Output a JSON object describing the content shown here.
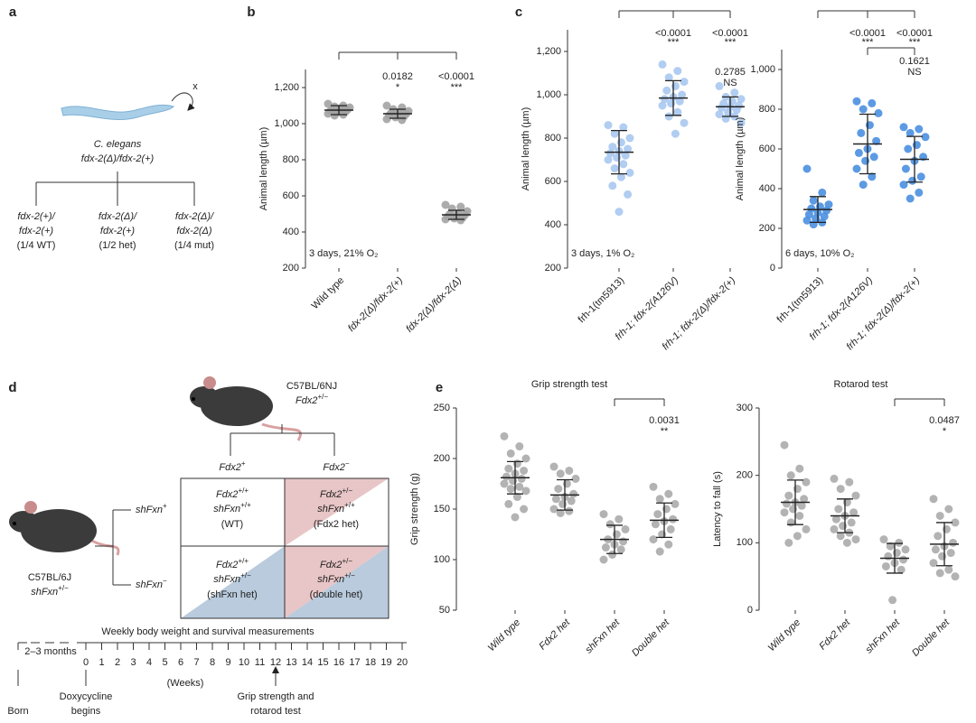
{
  "panel_labels": [
    "a",
    "b",
    "c",
    "d",
    "e"
  ],
  "panel_a": {
    "cross_symbol": "x",
    "organism": "C. elegans",
    "genotype": "fdx-2(Δ)/fdx-2(+)",
    "offspring": [
      {
        "line1": "fdx-2(+)/",
        "line2": "fdx-2(+)",
        "ratio": "(1/4 WT)"
      },
      {
        "line1": "fdx-2(Δ)/",
        "line2": "fdx-2(+)",
        "ratio": "(1/2 het)"
      },
      {
        "line1": "fdx-2(Δ)/",
        "line2": "fdx-2(Δ)",
        "ratio": "(1/4 mut)"
      }
    ]
  },
  "panel_d": {
    "strain_top": "C57BL/6NJ",
    "genotype_top": {
      "base": "Fdx2",
      "sup": "+/−"
    },
    "strain_left": "C57BL/6J",
    "genotype_left": {
      "base": "shFxn",
      "sup": "+/−"
    },
    "columns": [
      {
        "base": "Fdx2",
        "sup": "+"
      },
      {
        "base": "Fdx2",
        "sup": "−"
      }
    ],
    "rows": [
      {
        "base": "shFxn",
        "sup": "+"
      },
      {
        "base": "shFxn",
        "sup": "−"
      }
    ],
    "cells": [
      [
        {
          "line1": {
            "base": "Fdx2",
            "sup": "+/+"
          },
          "line2": {
            "base": "shFxn",
            "sup": "+/+"
          },
          "note": "(WT)"
        },
        {
          "line1": {
            "base": "Fdx2",
            "sup": "+/−"
          },
          "line2": {
            "base": "shFxn",
            "sup": "+/+"
          },
          "note": "(Fdx2 het)"
        }
      ],
      [
        {
          "line1": {
            "base": "Fdx2",
            "sup": "+/+"
          },
          "line2": {
            "base": "shFxn",
            "sup": "+/−"
          },
          "note": "(shFxn het)"
        },
        {
          "line1": {
            "base": "Fdx2",
            "sup": "+/−"
          },
          "line2": {
            "base": "shFxn",
            "sup": "+/−"
          },
          "note": "(double het)"
        }
      ]
    ]
  },
  "timeline": {
    "title": "Weekly body weight and survival measurements",
    "pre": "2–3 months",
    "weeks": [
      0,
      1,
      2,
      3,
      4,
      5,
      6,
      7,
      8,
      9,
      10,
      11,
      12,
      13,
      14,
      15,
      16,
      17,
      18,
      19,
      20
    ],
    "unit": "(Weeks)",
    "events": [
      {
        "line1": "Born"
      },
      {
        "line1": "Doxycycline",
        "line2": "begins"
      },
      {
        "line1": "Grip strength and",
        "line2": "rotarod test"
      }
    ]
  },
  "chart_data": [
    {
      "type": "strip",
      "ylabel": "Animal length (µm)",
      "annotation": "3 days, 21% O₂",
      "color": "#a3a3a3",
      "categories": [
        "Wild type",
        "fdx-2(Δ)/fdx-2(+)",
        "fdx-2(Δ)/fdx-2(Δ)"
      ],
      "points": [
        [
          1110,
          1100,
          1095,
          1090,
          1085,
          1080,
          1078,
          1075,
          1070,
          1065,
          1060,
          1055,
          1050,
          1045
        ],
        [
          1100,
          1090,
          1080,
          1070,
          1065,
          1060,
          1055,
          1050,
          1045,
          1040,
          1035,
          1025,
          1020
        ],
        [
          550,
          540,
          530,
          515,
          505,
          500,
          495,
          490,
          485,
          480,
          475,
          470,
          465
        ]
      ],
      "mean": [
        1075,
        1055,
        495
      ],
      "sd": [
        25,
        25,
        25
      ],
      "p_values": [
        null,
        "0.0182",
        "<0.0001"
      ],
      "stars": [
        null,
        "*",
        "***"
      ],
      "ylim": [
        200,
        1300
      ],
      "yticks": [
        200,
        400,
        600,
        800,
        {
          "value": 1000,
          "label": "1,000"
        },
        {
          "value": 1200,
          "label": "1,200"
        }
      ]
    },
    {
      "type": "strip",
      "ylabel": "Animal length (µm)",
      "annotation": "3 days, 1% O₂",
      "color": "#a9c8f0",
      "categories": [
        "frh-1(tm5913)",
        "frh-1; fdx-2(A126V)",
        "frh-1; fdx-2(Δ)/fdx-2(+)"
      ],
      "points": [
        [
          860,
          850,
          820,
          800,
          780,
          760,
          750,
          740,
          730,
          720,
          710,
          700,
          680,
          660,
          640,
          620,
          580,
          540,
          460
        ],
        [
          1140,
          1110,
          1080,
          1060,
          1040,
          1020,
          1000,
          990,
          980,
          970,
          960,
          950,
          920,
          900,
          870,
          820
        ],
        [
          1040,
          1010,
          990,
          980,
          970,
          960,
          950,
          945,
          940,
          930,
          920,
          910,
          900,
          890,
          870
        ]
      ],
      "mean": [
        735,
        985,
        945
      ],
      "sd": [
        100,
        80,
        45
      ],
      "p_values": [
        null,
        "<0.0001",
        "<0.0001"
      ],
      "stars": [
        null,
        "***",
        "***"
      ],
      "p_values_2": [
        null,
        null,
        "0.2785"
      ],
      "stars_2": [
        null,
        null,
        "NS"
      ],
      "ylim": [
        200,
        1300
      ],
      "yticks": [
        200,
        400,
        600,
        800,
        {
          "value": 1000,
          "label": "1,000"
        },
        {
          "value": 1200,
          "label": "1,200"
        }
      ]
    },
    {
      "type": "strip",
      "ylabel": "Animal length (µm)",
      "annotation": "6 days, 10% O₂",
      "color": "#4a8fe0",
      "categories": [
        "frh-1(tm5913)",
        "frh-1; fdx-2(A126V)",
        "frh-1; fdx-2(Δ)/fdx-2(+)"
      ],
      "points": [
        [
          500,
          380,
          340,
          320,
          310,
          300,
          290,
          280,
          270,
          260,
          250,
          240,
          230,
          220
        ],
        [
          840,
          830,
          800,
          780,
          720,
          680,
          640,
          600,
          580,
          560,
          540,
          500,
          460,
          420
        ],
        [
          710,
          700,
          680,
          660,
          620,
          600,
          560,
          540,
          500,
          460,
          440,
          420,
          380,
          350
        ]
      ],
      "mean": [
        295,
        625,
        548
      ],
      "sd": [
        65,
        150,
        115
      ],
      "p_values": [
        null,
        "<0.0001",
        "<0.0001"
      ],
      "stars": [
        null,
        "***",
        "***"
      ],
      "p_values_2": [
        null,
        null,
        "0.1621"
      ],
      "stars_2": [
        null,
        null,
        "NS"
      ],
      "ylim": [
        0,
        1100
      ],
      "yticks": [
        0,
        200,
        400,
        600,
        800,
        {
          "value": 1000,
          "label": "1,000"
        }
      ]
    },
    {
      "type": "strip",
      "title": "Grip strength test",
      "ylabel": "Grip strength (g)",
      "color": "#ababab",
      "categories": [
        "Wild type",
        "Fdx2 het",
        "shFxn het",
        "Double het"
      ],
      "points": [
        [
          222,
          212,
          205,
          200,
          195,
          190,
          188,
          185,
          182,
          180,
          178,
          175,
          172,
          170,
          168,
          162,
          155,
          150,
          142
        ],
        [
          192,
          188,
          185,
          180,
          175,
          170,
          165,
          162,
          160,
          158,
          155,
          150,
          148,
          146
        ],
        [
          145,
          140,
          135,
          130,
          125,
          120,
          118,
          115,
          112,
          110,
          105,
          100
        ],
        [
          172,
          165,
          160,
          155,
          150,
          145,
          140,
          138,
          135,
          130,
          125,
          120,
          115,
          108
        ]
      ],
      "mean": [
        181,
        164,
        120,
        139
      ],
      "sd": [
        16,
        15,
        14,
        17
      ],
      "p_values": [
        null,
        null,
        null,
        "0.0031"
      ],
      "stars": [
        null,
        null,
        null,
        "**"
      ],
      "ylim": [
        50,
        250
      ],
      "yticks": [
        50,
        100,
        150,
        200,
        250
      ]
    },
    {
      "type": "strip",
      "title": "Rotarod test",
      "ylabel": "Latency to fall (s)",
      "color": "#ababab",
      "categories": [
        "Wild type",
        "Fdx2 het",
        "shFxn het",
        "Double het"
      ],
      "points": [
        [
          245,
          210,
          200,
          190,
          180,
          170,
          165,
          160,
          158,
          155,
          150,
          145,
          140,
          130,
          120,
          110,
          100
        ],
        [
          195,
          190,
          180,
          170,
          160,
          150,
          145,
          140,
          135,
          130,
          125,
          120,
          115,
          110,
          105,
          100
        ],
        [
          105,
          100,
          95,
          90,
          85,
          80,
          75,
          70,
          65,
          60,
          15
        ],
        [
          165,
          150,
          140,
          130,
          120,
          110,
          100,
          95,
          90,
          85,
          80,
          70,
          60,
          55,
          50
        ]
      ],
      "mean": [
        160,
        140,
        77,
        98
      ],
      "sd": [
        33,
        25,
        22,
        32
      ],
      "p_values": [
        null,
        null,
        null,
        "0.0487"
      ],
      "stars": [
        null,
        null,
        null,
        "*"
      ],
      "ylim": [
        0,
        300
      ],
      "yticks": [
        0,
        100,
        200,
        300
      ]
    }
  ]
}
